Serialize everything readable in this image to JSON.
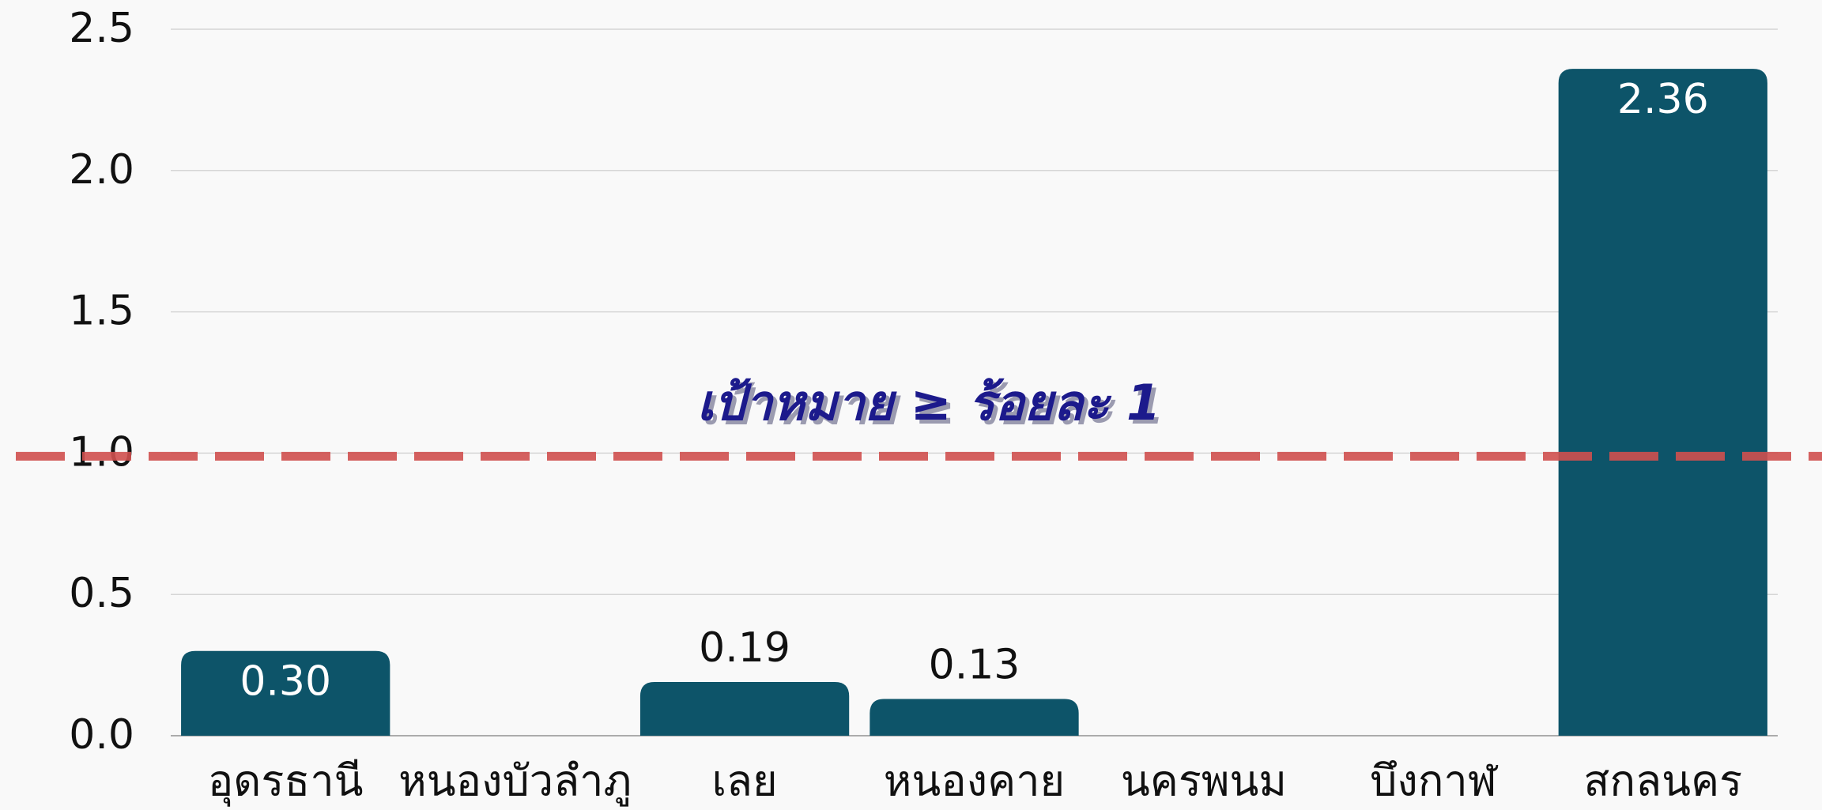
{
  "chart_data": {
    "type": "bar",
    "categories": [
      "อุดรธานี",
      "หนองบัวลำภู",
      "เลย",
      "หนองคาย",
      "นครพนม",
      "บึงกาฬ",
      "สกลนคร"
    ],
    "values": [
      0.3,
      null,
      0.19,
      0.13,
      null,
      null,
      2.36
    ],
    "value_labels": [
      "0.30",
      null,
      "0.19",
      "0.13",
      null,
      null,
      "2.36"
    ],
    "color": "#0d5469",
    "ylim": [
      0,
      2.5
    ],
    "yticks": [
      {
        "value": 0,
        "label": "0.0"
      },
      0.5,
      {
        "value": 1,
        "label": "1.0"
      },
      1.5,
      {
        "value": 2,
        "label": "2.0"
      },
      2.5
    ],
    "grid": true,
    "reference_line": {
      "value": 1,
      "color": "#d0504f"
    },
    "annotation": "เป้าหมาย ≥ ร้อยละ 1"
  }
}
